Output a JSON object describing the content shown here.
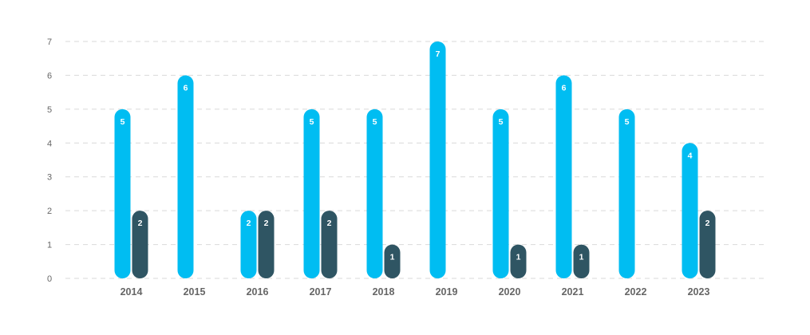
{
  "chart_data": {
    "type": "bar",
    "categories": [
      "2014",
      "2015",
      "2016",
      "2017",
      "2018",
      "2019",
      "2020",
      "2021",
      "2022",
      "2023"
    ],
    "series": [
      {
        "color": "#00bdf2",
        "values": [
          5,
          6,
          2,
          5,
          5,
          7,
          5,
          6,
          5,
          4
        ]
      },
      {
        "color": "#2f5563",
        "values": [
          2,
          null,
          2,
          2,
          1,
          null,
          1,
          1,
          null,
          2
        ]
      }
    ],
    "ylim": [
      0,
      7
    ],
    "yticks": [
      0,
      1,
      2,
      3,
      4,
      5,
      6,
      7
    ],
    "grid": true,
    "data_labels": true
  }
}
